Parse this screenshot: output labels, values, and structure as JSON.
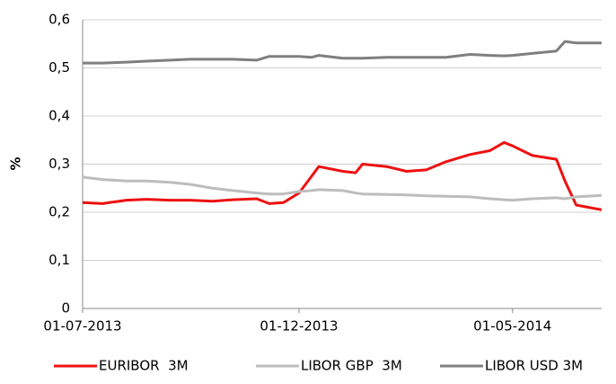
{
  "chart_data": {
    "type": "line",
    "ylabel": "%",
    "x": [
      "01-07-2013",
      "15-07-2013",
      "01-08-2013",
      "15-08-2013",
      "01-09-2013",
      "15-09-2013",
      "01-10-2013",
      "15-10-2013",
      "01-11-2013",
      "10-11-2013",
      "20-11-2013",
      "01-12-2013",
      "10-12-2013",
      "15-12-2013",
      "01-01-2014",
      "10-01-2014",
      "15-01-2014",
      "01-02-2014",
      "15-02-2014",
      "01-03-2014",
      "15-03-2014",
      "01-04-2014",
      "15-04-2014",
      "25-04-2014",
      "01-05-2014",
      "15-05-2014",
      "01-06-2014",
      "07-06-2014",
      "15-06-2014",
      "03-07-2014"
    ],
    "series": [
      {
        "name": "EURIBOR  3M",
        "color": "#ee1111",
        "values": [
          0.22,
          0.218,
          0.225,
          0.227,
          0.225,
          0.225,
          0.223,
          0.226,
          0.228,
          0.218,
          0.22,
          0.24,
          0.275,
          0.295,
          0.285,
          0.282,
          0.3,
          0.295,
          0.285,
          0.288,
          0.305,
          0.32,
          0.328,
          0.345,
          0.338,
          0.318,
          0.31,
          0.265,
          0.215,
          0.205
        ]
      },
      {
        "name": "LIBOR GBP  3M",
        "color": "#bdbdbd",
        "values": [
          0.273,
          0.268,
          0.265,
          0.265,
          0.262,
          0.258,
          0.25,
          0.245,
          0.24,
          0.238,
          0.238,
          0.243,
          0.245,
          0.247,
          0.245,
          0.24,
          0.238,
          0.237,
          0.236,
          0.234,
          0.233,
          0.232,
          0.228,
          0.226,
          0.225,
          0.228,
          0.23,
          0.228,
          0.232,
          0.235
        ]
      },
      {
        "name": "LIBOR USD 3M",
        "color": "#7f7f7f",
        "values": [
          0.51,
          0.51,
          0.512,
          0.514,
          0.516,
          0.518,
          0.518,
          0.518,
          0.516,
          0.524,
          0.524,
          0.524,
          0.522,
          0.526,
          0.52,
          0.52,
          0.52,
          0.522,
          0.522,
          0.522,
          0.522,
          0.528,
          0.526,
          0.525,
          0.526,
          0.53,
          0.535,
          0.555,
          0.552,
          0.552
        ]
      }
    ],
    "xlim": [
      "01-07-2013",
      "03-07-2014"
    ],
    "xticks": [
      "01-07-2013",
      "01-12-2013",
      "01-05-2014"
    ],
    "ylim": [
      0,
      0.6
    ],
    "yticks": [
      0,
      {
        "value": 0.1,
        "label": "0,1"
      },
      {
        "value": 0.2,
        "label": "0,2"
      },
      {
        "value": 0.3,
        "label": "0,3"
      },
      {
        "value": 0.4,
        "label": "0,4"
      },
      {
        "value": 0.5,
        "label": "0,5"
      },
      {
        "value": 0.6,
        "label": "0,6"
      }
    ],
    "grid": true,
    "legend": "bottom"
  }
}
